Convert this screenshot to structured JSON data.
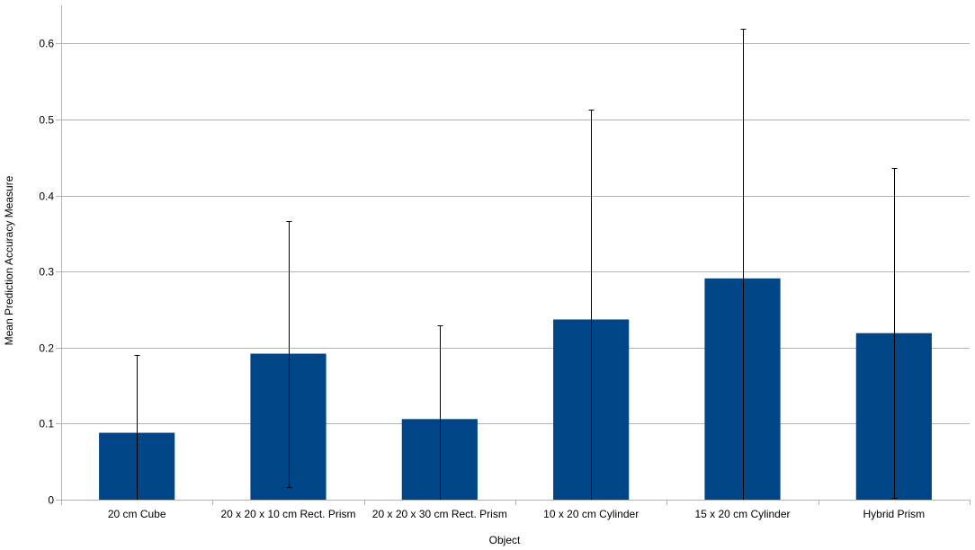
{
  "chart_data": {
    "type": "bar",
    "title": "",
    "xlabel": "Object",
    "ylabel": "Mean Prediction Accuracy Measure",
    "categories": [
      "20 cm Cube",
      "20 x 20 x 10 cm Rect. Prism",
      "20 x 20 x 30 cm Rect. Prism",
      "10 x 20 cm Cylinder",
      "15 x 20 cm Cylinder",
      "Hybrid Prism"
    ],
    "values": [
      0.088,
      0.192,
      0.106,
      0.237,
      0.291,
      0.219
    ],
    "error_bars": {
      "lower": [
        0.0,
        0.017,
        0.0,
        0.0,
        0.0,
        0.002
      ],
      "upper": [
        0.19,
        0.366,
        0.229,
        0.513,
        0.619,
        0.436
      ]
    },
    "ylim": [
      0,
      0.65
    ],
    "yticks": [
      0,
      0.1,
      0.2,
      0.3,
      0.4,
      0.5,
      0.6
    ],
    "ytick_labels": [
      "0",
      "0.1",
      "0.2",
      "0.3",
      "0.4",
      "0.5",
      "0.6"
    ],
    "grid": true,
    "legend": "none",
    "colors": {
      "bar": "#004586",
      "grid": "#b3b3b3",
      "axis": "#b3b3b3",
      "error": "#000000"
    }
  }
}
